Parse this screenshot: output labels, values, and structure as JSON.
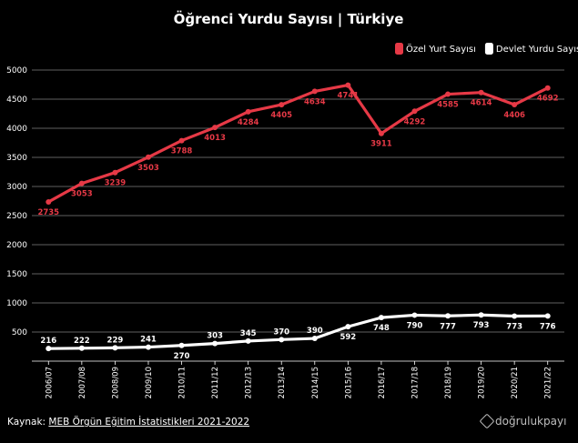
{
  "chart_data": {
    "type": "line",
    "title": "Öğrenci Yurdu Sayısı | Türkiye",
    "categories": [
      "2006/07",
      "2007/08",
      "2008/09",
      "2009/10",
      "2010/11",
      "2011/12",
      "2012/13",
      "2013/14",
      "2014/15",
      "2015/16",
      "2016/17",
      "2017/18",
      "2018/19",
      "2019/20",
      "2020/21",
      "2021/22"
    ],
    "series": [
      {
        "name": "Özel Yurt Sayısı",
        "color": "#e63946",
        "values": [
          2735,
          3053,
          3239,
          3503,
          3788,
          4013,
          4284,
          4405,
          4634,
          4741,
          3911,
          4292,
          4585,
          4614,
          4406,
          4692
        ]
      },
      {
        "name": "Devlet Yurdu Sayısı",
        "color": "#ffffff",
        "values": [
          216,
          222,
          229,
          241,
          270,
          303,
          345,
          370,
          390,
          592,
          748,
          790,
          777,
          793,
          773,
          776
        ]
      }
    ],
    "yticks": [
      500,
      1000,
      1500,
      2000,
      2500,
      3000,
      3500,
      4000,
      4500,
      5000
    ],
    "ylim": [
      0,
      5000
    ],
    "xlabel": "",
    "ylabel": "",
    "grid": true,
    "legend_position": "top-right"
  },
  "footer": {
    "source_prefix": "Kaynak: ",
    "source_link": "MEB Örgün Eğitim İstatistikleri 2021-2022",
    "brand": "doğrulukpayı"
  }
}
